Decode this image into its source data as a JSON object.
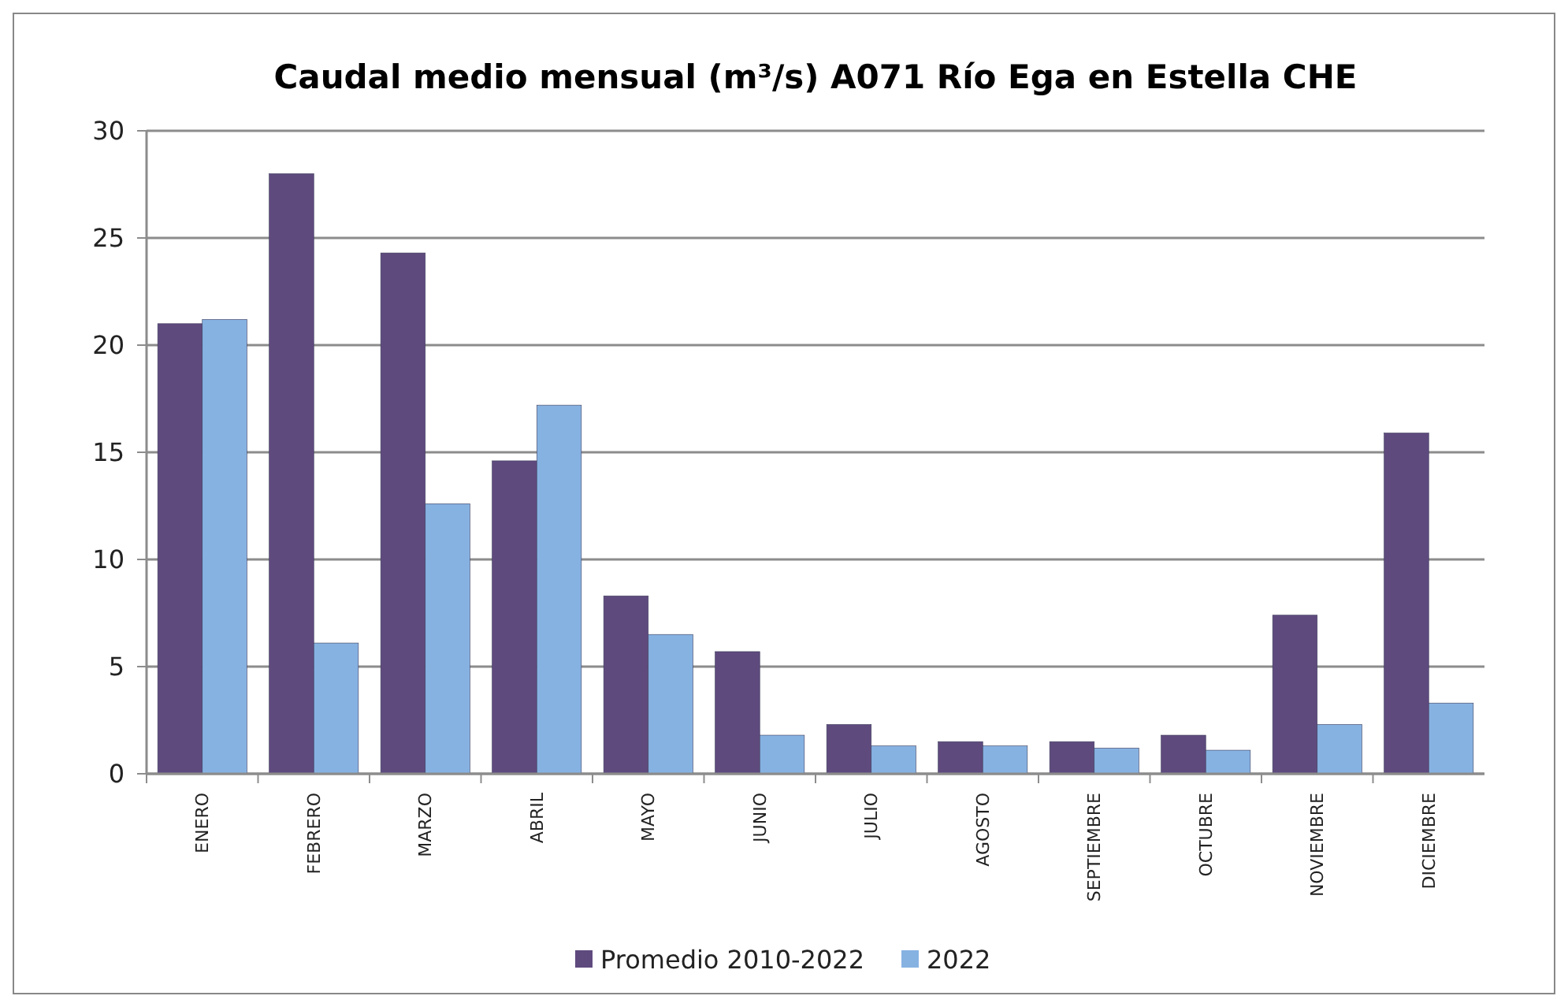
{
  "chart_data": {
    "type": "bar",
    "title": "Caudal medio mensual (m³/s) A071 Río Ega en Estella CHE",
    "categories": [
      "ENERO",
      "FEBRERO",
      "MARZO",
      "ABRIL",
      "MAYO",
      "JUNIO",
      "JULIO",
      "AGOSTO",
      "SEPTIEMBRE",
      "OCTUBRE",
      "NOVIEMBRE",
      "DICIEMBRE"
    ],
    "series": [
      {
        "name": "Promedio 2010-2022",
        "color": "#5f4a7e",
        "values": [
          21.0,
          28.0,
          24.3,
          14.6,
          8.3,
          5.7,
          2.3,
          1.5,
          1.5,
          1.8,
          7.4,
          15.9
        ]
      },
      {
        "name": "2022",
        "color": "#86b2e2",
        "values": [
          21.2,
          6.1,
          12.6,
          17.2,
          6.5,
          1.8,
          1.3,
          1.3,
          1.2,
          1.1,
          2.3,
          3.3
        ]
      }
    ],
    "ylim": [
      0,
      30
    ],
    "yticks": [
      0,
      5,
      10,
      15,
      20,
      25,
      30
    ],
    "grid": "y",
    "legend": "bottom"
  }
}
